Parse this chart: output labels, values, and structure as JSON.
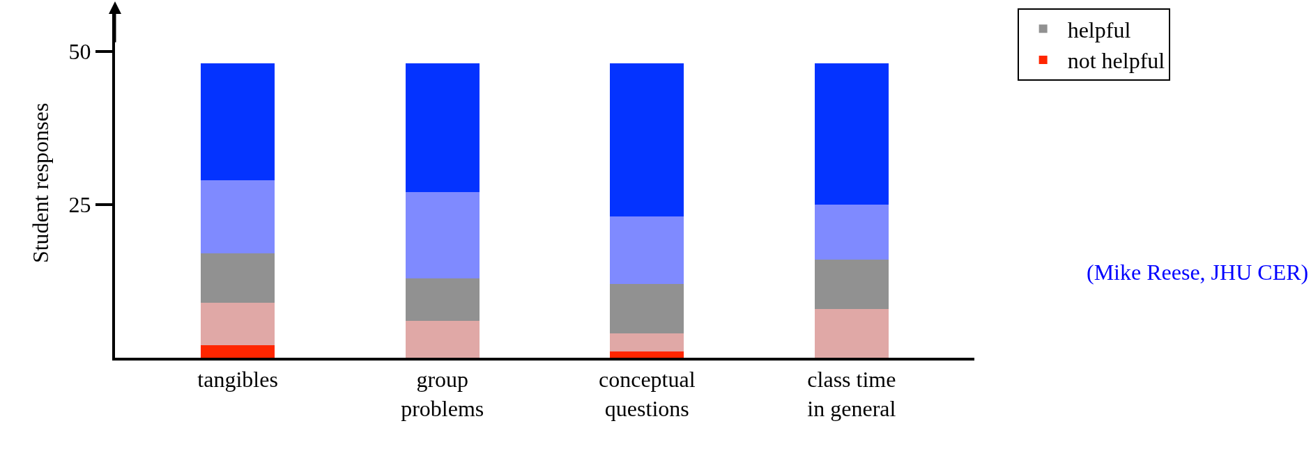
{
  "chart_data": {
    "type": "bar",
    "stacked": true,
    "ylabel": "Student responses",
    "categories": [
      "tangibles",
      "group\nproblems",
      "conceptual\nquestions",
      "class time\nin general"
    ],
    "series": [
      {
        "name": "not helpful",
        "color": "#ff2600",
        "values": [
          2,
          0,
          1,
          0
        ]
      },
      {
        "color": "#e0a8a6",
        "values": [
          7,
          6,
          3,
          8
        ]
      },
      {
        "name": "helpful",
        "color": "#919191",
        "values": [
          8,
          7,
          8,
          8
        ]
      },
      {
        "color": "#7f8aff",
        "values": [
          12,
          14,
          11,
          9
        ]
      },
      {
        "color": "#0433ff",
        "values": [
          19,
          21,
          25,
          23
        ]
      }
    ],
    "ylim": [
      0,
      57
    ],
    "yticks": [
      25,
      50
    ],
    "grid": false,
    "legend": "top right",
    "annotations": [
      "(Mike Reese, JHU CER)"
    ]
  }
}
